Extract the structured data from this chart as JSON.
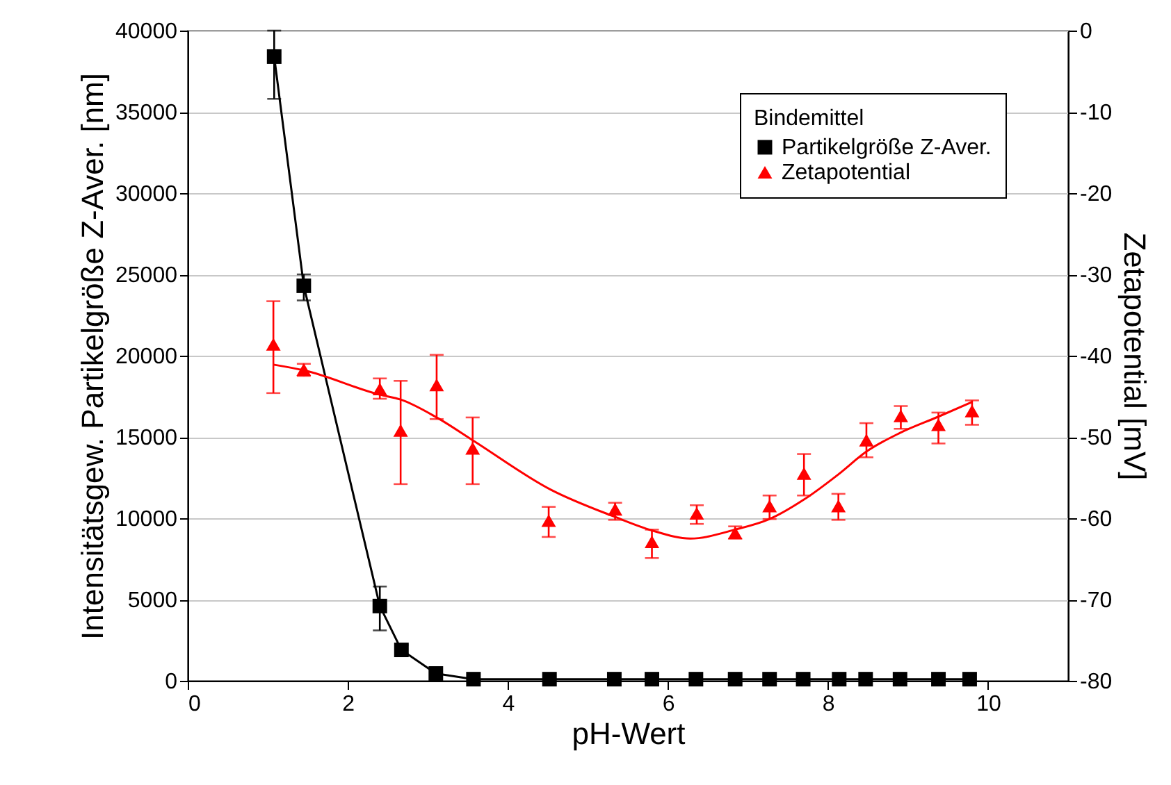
{
  "chart_data": {
    "type": "line",
    "xlabel": "pH-Wert",
    "ylabel": "Intensitätsgew. Partikelgröße Z-Aver. [nm]",
    "y2label": "Zetapotential [mV]",
    "legend_title": "Bindemittel",
    "xlim": [
      0,
      11
    ],
    "xticks": [
      0,
      2,
      4,
      6,
      8,
      10
    ],
    "ylim": [
      0,
      40000
    ],
    "yticks": [
      0,
      5000,
      10000,
      15000,
      20000,
      25000,
      30000,
      35000,
      40000
    ],
    "y2lim": [
      -80,
      0
    ],
    "y2ticks": [
      -80,
      -70,
      -60,
      -50,
      -40,
      -30,
      -20,
      -10,
      0
    ],
    "grid": "y",
    "legend": "top right",
    "series": [
      {
        "name": "Partikelgröße Z-Aver.",
        "type": "line",
        "marker": "square",
        "color": "#000000",
        "x": [
          1.08,
          1.45,
          2.4,
          2.67,
          3.1,
          3.57,
          4.52,
          5.33,
          5.8,
          6.35,
          6.84,
          7.27,
          7.69,
          8.14,
          8.47,
          8.9,
          9.38,
          9.77
        ],
        "values": [
          38400,
          24300,
          4600,
          1900,
          450,
          100,
          100,
          100,
          100,
          100,
          100,
          100,
          100,
          100,
          100,
          100,
          100,
          100
        ],
        "errors": [
          [
            35800,
            40000
          ],
          [
            23400,
            25000
          ],
          [
            3100,
            5800
          ],
          300,
          null,
          null,
          null,
          null,
          null,
          null,
          null,
          null,
          null,
          null,
          null,
          null,
          null,
          null
        ]
      },
      {
        "name": "Zetapotential",
        "type": "scatter",
        "marker": "triangle",
        "axis": "y2",
        "color": "#ff0000",
        "x": [
          1.07,
          1.45,
          2.4,
          2.66,
          3.11,
          3.56,
          4.51,
          5.34,
          5.8,
          6.36,
          6.84,
          7.27,
          7.7,
          8.13,
          8.48,
          8.91,
          9.38,
          9.8
        ],
        "values": [
          -38.6,
          -41.7,
          -44.1,
          -49.2,
          -43.6,
          -51.4,
          -60.3,
          -58.9,
          -62.9,
          -59.4,
          -61.8,
          -58.5,
          -54.5,
          -58.5,
          -50.4,
          -47.4,
          -48.5,
          -46.8
        ],
        "errors": [
          [
            -44.6,
            -33.3
          ],
          [
            -42.5,
            -41
          ],
          [
            -45.3,
            -42.8
          ],
          [
            -55.8,
            -43.1
          ],
          [
            -47.8,
            -39.9
          ],
          [
            -55.8,
            -47.6
          ],
          [
            -62.3,
            -58.6
          ],
          [
            -60.2,
            -58.1
          ],
          [
            -64.9,
            -61.4
          ],
          [
            -60.7,
            -58.4
          ],
          [
            -62.5,
            -61
          ],
          [
            -60.1,
            -57.2
          ],
          [
            -57.2,
            -52.1
          ],
          [
            -60.2,
            -57
          ],
          [
            -52.5,
            -48.3
          ],
          [
            -49,
            -46.2
          ],
          [
            -50.8,
            -47
          ],
          [
            -48.5,
            -45.5
          ]
        ]
      },
      {
        "type": "line",
        "marker": "none",
        "axis": "y2",
        "color": "#ff0000",
        "x": [
          1.07,
          1.45,
          2.4,
          2.66,
          3.11,
          3.56,
          4.54,
          5.33,
          5.8,
          6.28,
          6.84,
          7.27,
          7.7,
          8.13,
          8.48,
          8.9,
          9.38,
          9.8
        ],
        "values": [
          -41.1,
          -41.8,
          -44.8,
          -45.4,
          -47.6,
          -50.4,
          -56.5,
          -59.8,
          -61.5,
          -62.5,
          -61.4,
          -60.1,
          -57.7,
          -54.6,
          -51.8,
          -49.5,
          -47.5,
          -45.7
        ]
      }
    ]
  }
}
